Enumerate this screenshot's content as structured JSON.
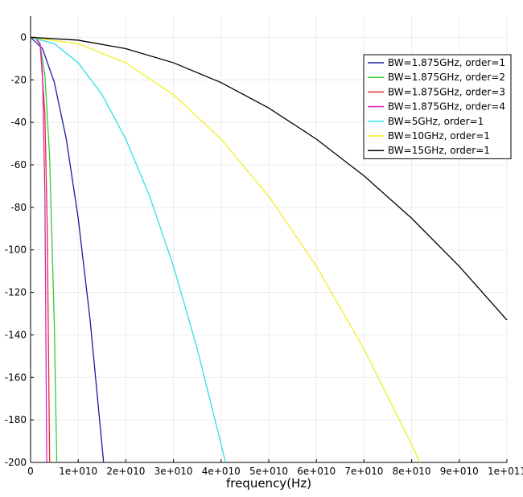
{
  "chart_data": {
    "type": "line",
    "x_label": "frequency(Hz)",
    "xlim": [
      0,
      100000000000
    ],
    "ylim": [
      -200,
      10
    ],
    "xticks": [
      0,
      {
        "value": 10000000000,
        "label": "1e+010"
      },
      {
        "value": 20000000000,
        "label": "2e+010"
      },
      {
        "value": 30000000000,
        "label": "3e+010"
      },
      {
        "value": 40000000000,
        "label": "4e+010"
      },
      {
        "value": 50000000000,
        "label": "5e+010"
      },
      {
        "value": 60000000000,
        "label": "6e+010"
      },
      {
        "value": 70000000000,
        "label": "7e+010"
      },
      {
        "value": 80000000000,
        "label": "8e+010"
      },
      {
        "value": 90000000000,
        "label": "9e+010"
      },
      {
        "value": 100000000000,
        "label": "1e+011"
      }
    ],
    "yticks": [
      0,
      -20,
      -40,
      -60,
      -80,
      -100,
      -120,
      -140,
      -160,
      -180,
      -200
    ],
    "grid": true,
    "legend": "upper right",
    "series": [
      {
        "name": "BW=1.875GHz, order=1",
        "color": "#1a1aa0",
        "x": [
          0,
          2500000000,
          5000000000,
          7500000000,
          10000000000,
          12500000000,
          15330000000
        ],
        "values": [
          0,
          -5.3,
          -21.3,
          -47.9,
          -85.1,
          -133,
          -200
        ]
      },
      {
        "name": "BW=1.875GHz, order=2",
        "color": "#33cc33",
        "x": [
          0,
          1000000000,
          2000000000,
          3000000000,
          4000000000,
          5000000000,
          5500000000
        ],
        "values": [
          0,
          -0.2,
          -3.5,
          -17.7,
          -56,
          -136.6,
          -200
        ]
      },
      {
        "name": "BW=1.875GHz, order=3",
        "color": "#e03030",
        "x": [
          0,
          1000000000,
          2000000000,
          3000000000,
          3500000000,
          4000000000
        ],
        "values": [
          0,
          -0.05,
          -3.1,
          -35.6,
          -89.7,
          -200
        ]
      },
      {
        "name": "BW=1.875GHz, order=4",
        "color": "#e020c0",
        "x": [
          0,
          1000000000,
          2000000000,
          2500000000,
          3000000000,
          3400000000
        ],
        "values": [
          0,
          -0.01,
          -2.9,
          -17,
          -73,
          -200
        ]
      },
      {
        "name": "BW=5GHz, order=1",
        "color": "#30e0e0",
        "x": [
          0,
          5000000000,
          10000000000,
          15000000000,
          20000000000,
          25000000000,
          30000000000,
          35000000000,
          40000000000,
          40900000000
        ],
        "values": [
          0,
          -3,
          -12,
          -26.9,
          -47.9,
          -74.8,
          -107.7,
          -146.6,
          -191.5,
          -200
        ]
      },
      {
        "name": "BW=10GHz, order=1",
        "color": "#f0f020",
        "x": [
          0,
          10000000000,
          20000000000,
          30000000000,
          40000000000,
          50000000000,
          60000000000,
          70000000000,
          80000000000,
          81700000000
        ],
        "values": [
          0,
          -3,
          -12,
          -27,
          -47.9,
          -74.8,
          -107.7,
          -146.6,
          -191.5,
          -200
        ]
      },
      {
        "name": "BW=15GHz, order=1",
        "color": "#000000",
        "x": [
          0,
          10000000000,
          20000000000,
          30000000000,
          40000000000,
          50000000000,
          60000000000,
          70000000000,
          80000000000,
          90000000000,
          100000000000
        ],
        "values": [
          0,
          -1.33,
          -5.32,
          -11.97,
          -21.28,
          -33.25,
          -47.88,
          -65.17,
          -85.12,
          -107.73,
          -133
        ]
      }
    ]
  }
}
